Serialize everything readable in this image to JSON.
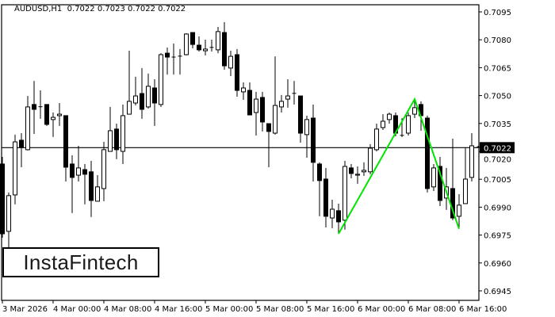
{
  "header": {
    "symbol": "AUDUSD,H1",
    "ohlc": "0.7022 0.7023 0.7022 0.7022"
  },
  "logo": "InstaFintech",
  "colors": {
    "background": "#ffffff",
    "candle_up": "#ffffff",
    "candle_down": "#000000",
    "outline": "#000000",
    "pattern_line": "#00e600",
    "price_box": "#000000"
  },
  "chart_data": {
    "type": "candlestick",
    "title": "AUDUSD,H1",
    "ylim": [
      0.694,
      0.7101
    ],
    "y_ticks": [
      "0.7095",
      "0.7080",
      "0.7065",
      "0.7050",
      "0.7035",
      "0.7020",
      "0.7005",
      "0.6990",
      "0.6975",
      "0.6960",
      "0.6945"
    ],
    "x_ticks": [
      {
        "label": "3 Mar 2026",
        "index": 0
      },
      {
        "label": "4 Mar 00:00",
        "index": 8
      },
      {
        "label": "4 Mar 08:00",
        "index": 16
      },
      {
        "label": "4 Mar 16:00",
        "index": 24
      },
      {
        "label": "5 Mar 00:00",
        "index": 32
      },
      {
        "label": "5 Mar 08:00",
        "index": 40
      },
      {
        "label": "5 Mar 16:00",
        "index": 48
      },
      {
        "label": "6 Mar 00:00",
        "index": 56
      },
      {
        "label": "6 Mar 08:00",
        "index": 64
      },
      {
        "label": "6 Mar 16:00",
        "index": 72
      }
    ],
    "current_price": "0.7022",
    "candles_ohlc": [
      [
        0.70132,
        0.7017,
        0.69736,
        0.69757
      ],
      [
        0.6977,
        0.69979,
        0.69566,
        0.69962
      ],
      [
        0.69966,
        0.7029,
        0.69915,
        0.70251
      ],
      [
        0.7026,
        0.70298,
        0.70115,
        0.70222
      ],
      [
        0.70209,
        0.70498,
        0.70205,
        0.70439
      ],
      [
        0.70452,
        0.70579,
        0.70294,
        0.70426
      ],
      [
        0.70439,
        0.70528,
        0.70375,
        0.7044
      ],
      [
        0.70452,
        0.70452,
        0.70337,
        0.70345
      ],
      [
        0.70371,
        0.70409,
        0.70277,
        0.70383
      ],
      [
        0.70392,
        0.7046,
        0.70337,
        0.704
      ],
      [
        0.70392,
        0.70392,
        0.70038,
        0.70115
      ],
      [
        0.70132,
        0.70179,
        0.69868,
        0.7006
      ],
      [
        0.70072,
        0.7023,
        0.70038,
        0.70111
      ],
      [
        0.70102,
        0.70132,
        0.69915,
        0.70077
      ],
      [
        0.7009,
        0.70149,
        0.69847,
        0.69936
      ],
      [
        0.69932,
        0.70072,
        0.69932,
        0.70009
      ],
      [
        0.7,
        0.70251,
        0.69932,
        0.70209
      ],
      [
        0.702,
        0.70439,
        0.702,
        0.70311
      ],
      [
        0.7032,
        0.70349,
        0.70158,
        0.70209
      ],
      [
        0.702,
        0.70452,
        0.70132,
        0.70392
      ],
      [
        0.704,
        0.70741,
        0.704,
        0.70469
      ],
      [
        0.7046,
        0.70601,
        0.70447,
        0.70498
      ],
      [
        0.70511,
        0.70648,
        0.70375,
        0.70426
      ],
      [
        0.70439,
        0.70618,
        0.7043,
        0.7055
      ],
      [
        0.70541,
        0.70588,
        0.70337,
        0.7046
      ],
      [
        0.70452,
        0.70728,
        0.70439,
        0.7072
      ],
      [
        0.70728,
        0.70758,
        0.70613,
        0.70707
      ],
      [
        0.70703,
        0.7078,
        0.70613,
        0.70707
      ],
      [
        0.70711,
        0.7075,
        0.70613,
        0.70712
      ],
      [
        0.7072,
        0.70835,
        0.70716,
        0.70831
      ],
      [
        0.70839,
        0.70839,
        0.70754,
        0.70775
      ],
      [
        0.70771,
        0.70818,
        0.70737,
        0.70746
      ],
      [
        0.70741,
        0.70801,
        0.70716,
        0.7075
      ],
      [
        0.70758,
        0.70801,
        0.70737,
        0.70759
      ],
      [
        0.70746,
        0.70869,
        0.70728,
        0.70844
      ],
      [
        0.70839,
        0.70895,
        0.70639,
        0.7066
      ],
      [
        0.70648,
        0.70741,
        0.70605,
        0.70711
      ],
      [
        0.7072,
        0.7075,
        0.70494,
        0.70528
      ],
      [
        0.7052,
        0.70571,
        0.70477,
        0.70541
      ],
      [
        0.70528,
        0.70571,
        0.70396,
        0.70396
      ],
      [
        0.70409,
        0.7052,
        0.70285,
        0.70481
      ],
      [
        0.7049,
        0.7052,
        0.70307,
        0.70358
      ],
      [
        0.70349,
        0.70349,
        0.70115,
        0.70307
      ],
      [
        0.70298,
        0.70711,
        0.7029,
        0.70447
      ],
      [
        0.70439,
        0.70503,
        0.70409,
        0.70469
      ],
      [
        0.70481,
        0.70588,
        0.70435,
        0.70498
      ],
      [
        0.70511,
        0.70579,
        0.70452,
        0.70512
      ],
      [
        0.70498,
        0.70498,
        0.70247,
        0.70298
      ],
      [
        0.7029,
        0.70392,
        0.70166,
        0.70371
      ],
      [
        0.70379,
        0.70452,
        0.70038,
        0.70141
      ],
      [
        0.70132,
        0.70141,
        0.69851,
        0.70043
      ],
      [
        0.70051,
        0.70111,
        0.69791,
        0.69851
      ],
      [
        0.69842,
        0.6994,
        0.69787,
        0.69889
      ],
      [
        0.69881,
        0.69919,
        0.69757,
        0.69821
      ],
      [
        0.6983,
        0.70149,
        0.69779,
        0.70119
      ],
      [
        0.70111,
        0.70132,
        0.70055,
        0.70081
      ],
      [
        0.70072,
        0.70119,
        0.70026,
        0.70077
      ],
      [
        0.7009,
        0.70141,
        0.70068,
        0.70098
      ],
      [
        0.7009,
        0.70239,
        0.70077,
        0.70217
      ],
      [
        0.70209,
        0.70349,
        0.702,
        0.7032
      ],
      [
        0.70328,
        0.704,
        0.70315,
        0.70362
      ],
      [
        0.70371,
        0.70409,
        0.70349,
        0.704
      ],
      [
        0.70392,
        0.70409,
        0.70281,
        0.70298
      ],
      [
        0.70285,
        0.70379,
        0.70277,
        0.70286
      ],
      [
        0.70298,
        0.70409,
        0.70285,
        0.70392
      ],
      [
        0.704,
        0.70473,
        0.70379,
        0.70435
      ],
      [
        0.70452,
        0.70469,
        0.70311,
        0.70392
      ],
      [
        0.70379,
        0.70392,
        0.69979,
        0.7
      ],
      [
        0.70009,
        0.70132,
        0.69987,
        0.70111
      ],
      [
        0.70119,
        0.7017,
        0.69906,
        0.69936
      ],
      [
        0.69949,
        0.70111,
        0.69885,
        0.70009
      ],
      [
        0.7,
        0.70268,
        0.6983,
        0.69842
      ],
      [
        0.69851,
        0.6997,
        0.69791,
        0.69911
      ],
      [
        0.69919,
        0.70222,
        0.69919,
        0.70051
      ],
      [
        0.7006,
        0.70298,
        0.70038,
        0.7023
      ],
      [
        0.70222,
        0.7023,
        0.7022,
        0.70222
      ]
    ],
    "pattern_points": [
      {
        "index": 53,
        "price": 0.69757
      },
      {
        "index": 65,
        "price": 0.70481
      },
      {
        "index": 72,
        "price": 0.69783
      }
    ]
  }
}
